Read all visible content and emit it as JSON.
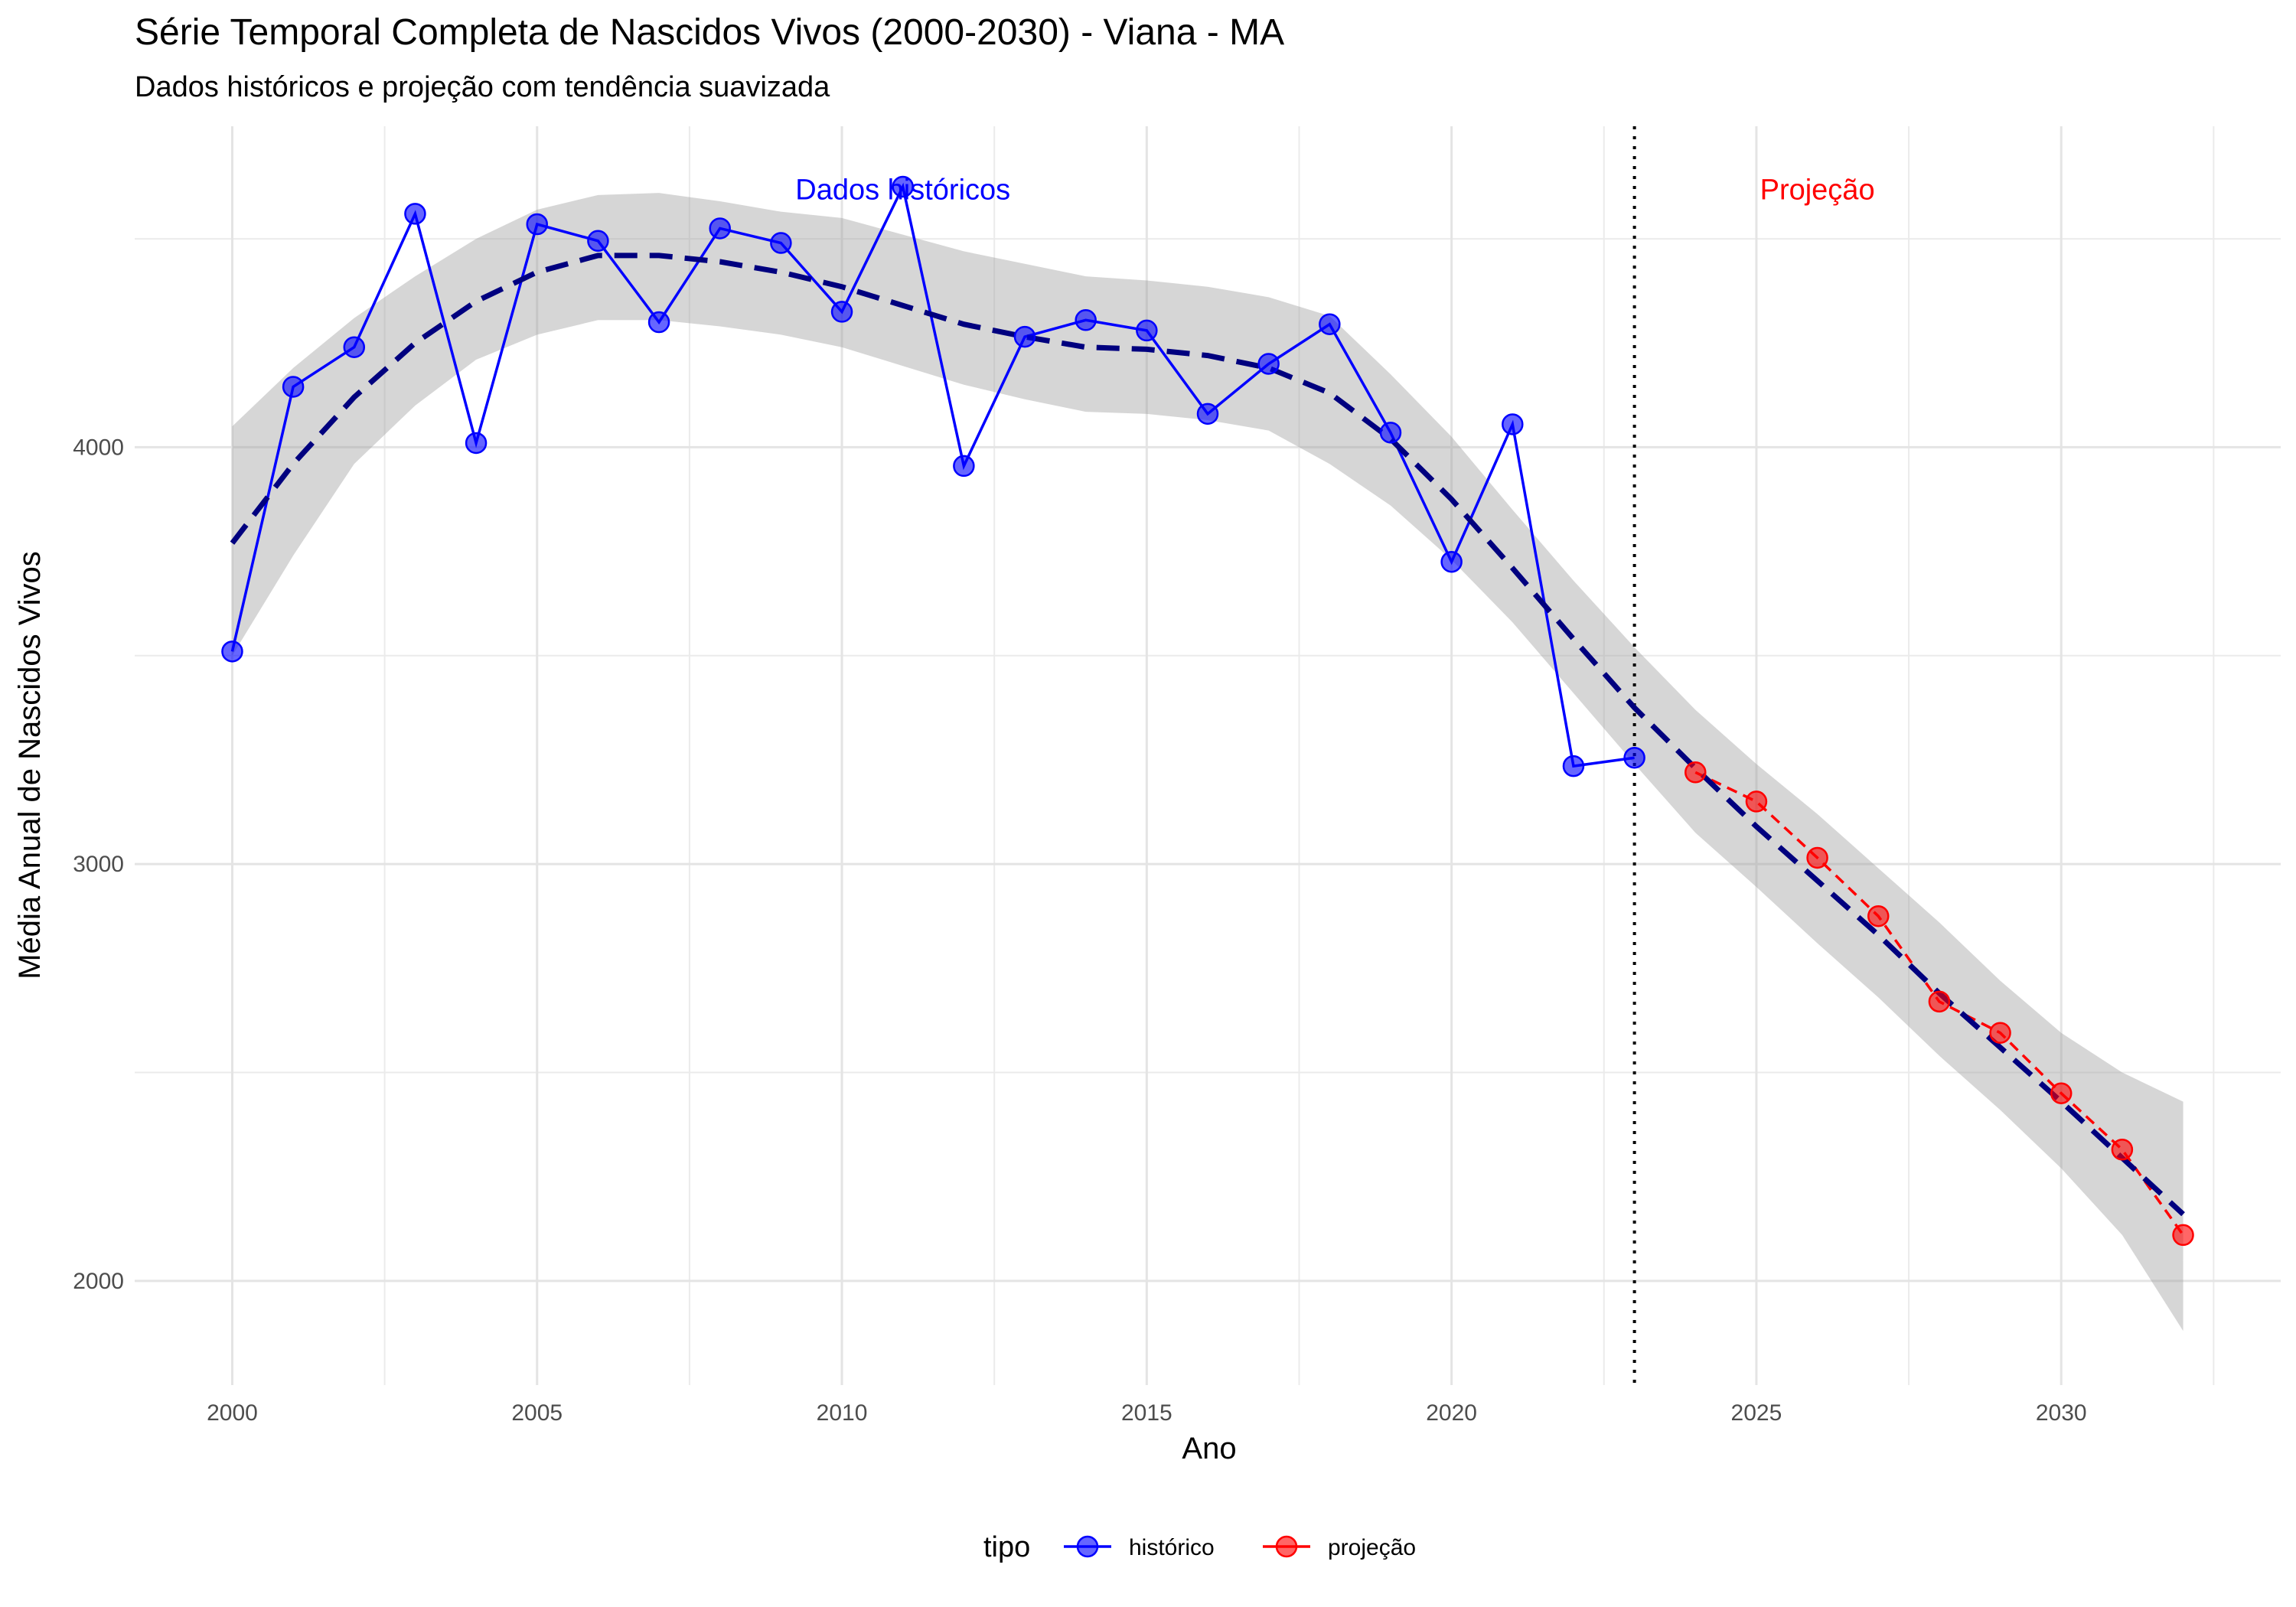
{
  "chart_data": {
    "type": "line",
    "title": "Série Temporal Completa de Nascidos Vivos (2000-2030) -  Viana - MA",
    "subtitle": "Dados históricos e projeção com tendência suavizada",
    "xlabel": "Ano",
    "ylabel": "Média Anual de Nascidos Vivos",
    "xlim": [
      1998.4,
      2033.6
    ],
    "ylim": [
      1750,
      4770
    ],
    "x_ticks": [
      2000,
      2005,
      2010,
      2015,
      2020,
      2025,
      2030
    ],
    "y_ticks": [
      2000,
      3000,
      4000
    ],
    "grid": true,
    "legend": {
      "title": "tipo",
      "position": "bottom",
      "entries": [
        {
          "label": "histórico",
          "color": "#0000ff"
        },
        {
          "label": "projeção",
          "color": "#ff0000"
        }
      ]
    },
    "series": [
      {
        "name": "histórico",
        "color": "#0000ff",
        "line_style": "solid",
        "x": [
          2000,
          2001,
          2002,
          2003,
          2004,
          2005,
          2006,
          2007,
          2008,
          2009,
          2010,
          2011,
          2012,
          2013,
          2014,
          2015,
          2016,
          2017,
          2018,
          2019,
          2020,
          2021,
          2022,
          2023
        ],
        "y": [
          3510,
          4145,
          4240,
          4560,
          4010,
          4535,
          4495,
          4300,
          4525,
          4490,
          4325,
          4625,
          3955,
          4265,
          4305,
          4280,
          4080,
          4200,
          4295,
          4035,
          3725,
          4055,
          3235,
          3255
        ]
      },
      {
        "name": "projeção",
        "color": "#ff0000",
        "line_style": "dashed",
        "x": [
          2024,
          2025,
          2026,
          2027,
          2028,
          2029,
          2030,
          2031,
          2032
        ],
        "y": [
          3220,
          3150,
          3015,
          2875,
          2670,
          2595,
          2450,
          2315,
          2110
        ]
      }
    ],
    "trend": {
      "color": "#00007f",
      "line_style": "dashed",
      "x": [
        2000,
        2001,
        2002,
        2003,
        2004,
        2005,
        2006,
        2007,
        2008,
        2009,
        2010,
        2011,
        2012,
        2013,
        2014,
        2015,
        2016,
        2017,
        2018,
        2019,
        2020,
        2021,
        2022,
        2023,
        2024,
        2025,
        2026,
        2027,
        2028,
        2029,
        2030,
        2031,
        2032
      ],
      "y": [
        3770,
        3960,
        4120,
        4250,
        4350,
        4420,
        4460,
        4460,
        4445,
        4420,
        4385,
        4340,
        4295,
        4265,
        4240,
        4235,
        4220,
        4190,
        4130,
        4020,
        3875,
        3710,
        3540,
        3375,
        3230,
        3090,
        2960,
        2830,
        2690,
        2560,
        2430,
        2295,
        2160
      ],
      "band_upper": [
        4050,
        4190,
        4310,
        4410,
        4500,
        4570,
        4605,
        4610,
        4590,
        4565,
        4550,
        4510,
        4470,
        4440,
        4410,
        4400,
        4385,
        4360,
        4315,
        4175,
        4025,
        3850,
        3680,
        3520,
        3370,
        3240,
        3120,
        2990,
        2860,
        2720,
        2595,
        2500,
        2430
      ],
      "band_lower": [
        3500,
        3740,
        3960,
        4100,
        4210,
        4270,
        4305,
        4305,
        4290,
        4270,
        4240,
        4195,
        4150,
        4115,
        4085,
        4080,
        4065,
        4040,
        3960,
        3860,
        3730,
        3580,
        3410,
        3240,
        3075,
        2945,
        2810,
        2680,
        2540,
        2410,
        2270,
        2110,
        1880
      ]
    },
    "vline": {
      "x": 2023,
      "style": "dotted",
      "color": "#000000"
    },
    "annotations": [
      {
        "text": "Dados históricos",
        "x": 2011,
        "y": 4620,
        "color": "#0000ff"
      },
      {
        "text": "Projeção",
        "x": 2026,
        "y": 4620,
        "color": "#ff0000"
      }
    ]
  }
}
